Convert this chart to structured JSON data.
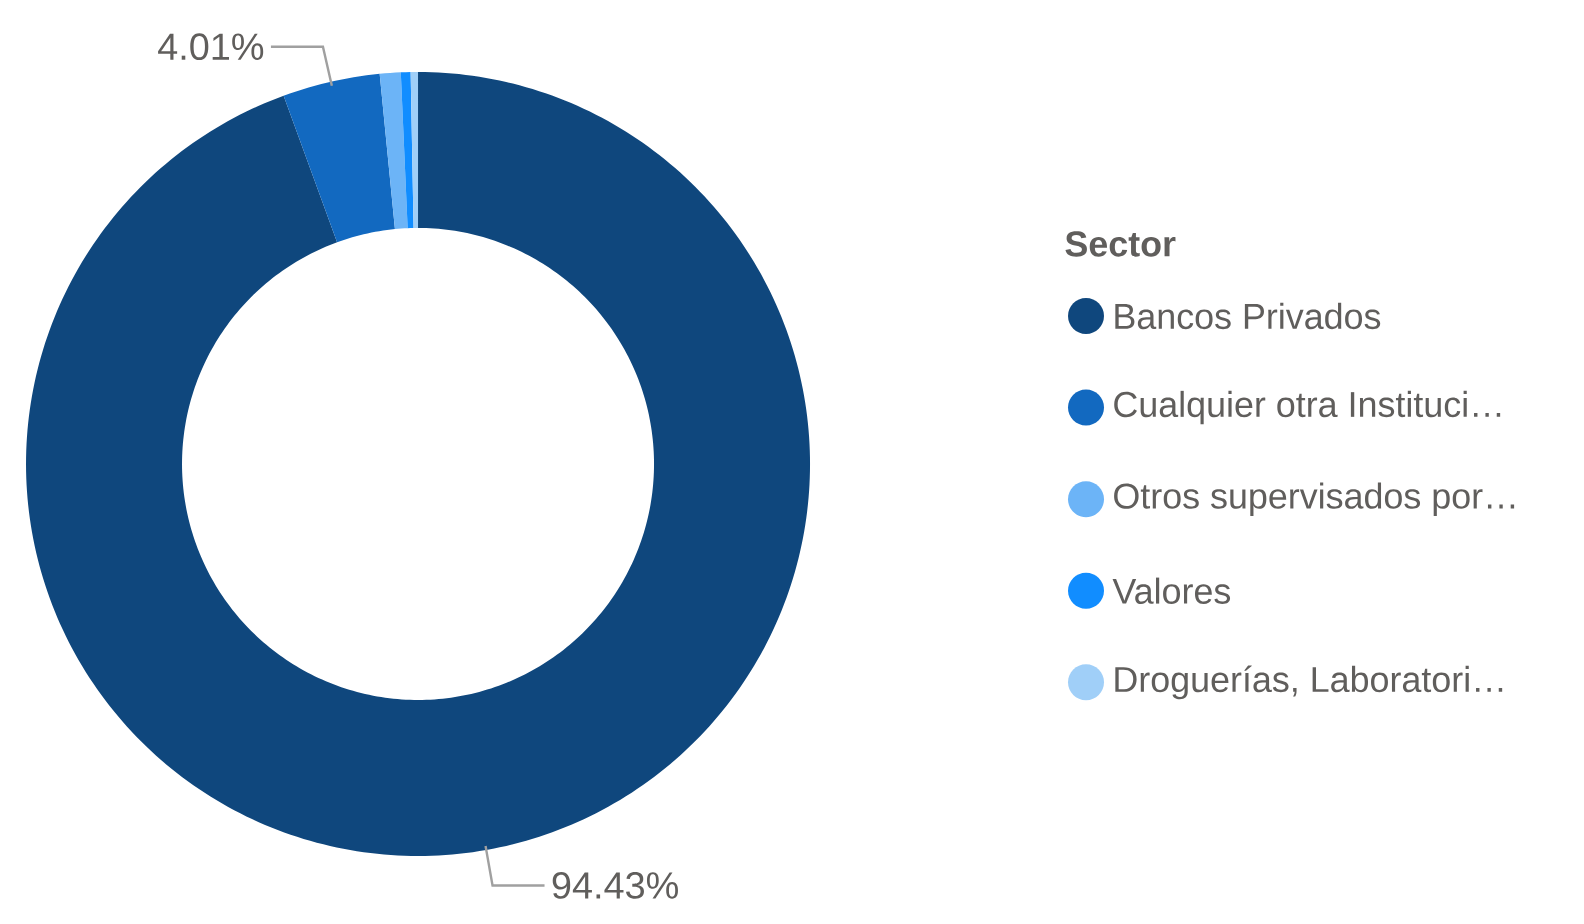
{
  "chart_data": {
    "type": "donut",
    "legend_title": "Sector",
    "categories": [
      "Bancos Privados",
      "Cualquier otra Instituci…",
      "Otros supervisados por…",
      "Valores",
      "Droguerías, Laboratori…"
    ],
    "values": [
      94.43,
      4.01,
      0.86,
      0.4,
      0.3
    ],
    "colors": [
      "#0f477d",
      "#1269c0",
      "#6cb4f7",
      "#118dff",
      "#a0cff8"
    ],
    "value_labels": [
      "94.43%",
      "4.01%",
      null,
      null,
      null
    ],
    "legend": "right"
  }
}
